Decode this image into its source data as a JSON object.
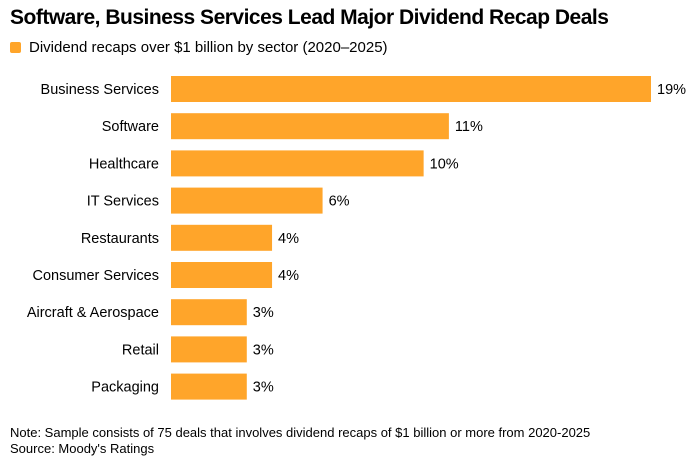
{
  "title": "Software, Business Services Lead Major Dividend Recap Deals",
  "legend_label": "Dividend recaps over $1 billion by sector (2020–2025)",
  "note": "Note: Sample consists of 75 deals that involves dividend recaps of $1 billion or more from 2020-2025",
  "source": "Source: Moody's Ratings",
  "colors": {
    "bar": "#FFA52A",
    "text": "#000000"
  },
  "chart_data": {
    "type": "bar",
    "orientation": "horizontal",
    "categories": [
      "Business Services",
      "Software",
      "Healthcare",
      "IT Services",
      "Restaurants",
      "Consumer Services",
      "Aircraft & Aerospace",
      "Retail",
      "Packaging"
    ],
    "values": [
      19,
      11,
      10,
      6,
      4,
      4,
      3,
      3,
      3
    ],
    "value_labels": [
      "19%",
      "11%",
      "10%",
      "6%",
      "4%",
      "4%",
      "3%",
      "3%",
      "3%"
    ],
    "series": [
      {
        "name": "Dividend recaps over $1 billion by sector (2020–2025)",
        "values": [
          19,
          11,
          10,
          6,
          4,
          4,
          3,
          3,
          3
        ]
      }
    ],
    "unit": "%",
    "xlim": [
      0,
      19
    ],
    "grid": false,
    "legend": "top-left"
  }
}
